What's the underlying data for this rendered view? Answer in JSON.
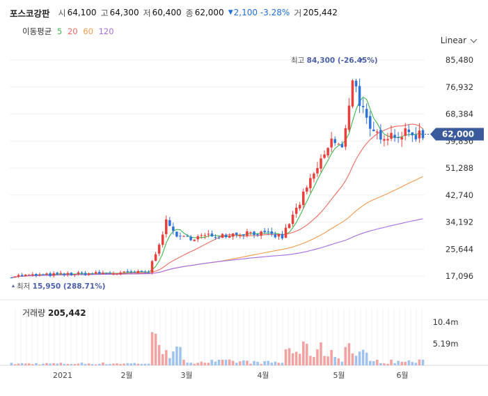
{
  "header": {
    "name": "포스코강판",
    "open_label": "시",
    "open": "64,100",
    "high_label": "고",
    "high": "64,300",
    "low_label": "저",
    "low": "60,400",
    "close_label": "종",
    "close": "62,000",
    "change": "2,100",
    "change_pct": "-3.28%",
    "volume_label": "거",
    "volume": "205,442"
  },
  "ma_legend": {
    "label": "이동평균",
    "periods": [
      "5",
      "20",
      "60",
      "120"
    ],
    "colors": [
      "#3cb84a",
      "#f06a5e",
      "#f2994a",
      "#a56de2"
    ]
  },
  "scale": "Linear",
  "price_axis": {
    "ticks": [
      "85,480",
      "76,932",
      "68,384",
      "59,836",
      "51,288",
      "42,740",
      "34,192",
      "25,644",
      "17,096"
    ],
    "current": "62,000",
    "current_color": "#3a5a9c"
  },
  "markers": {
    "high_label": "최고",
    "high_value": "84,300 (-26.45%)",
    "low_label": "최저",
    "low_value": "15,950 (288.71%)"
  },
  "volume_panel": {
    "label": "거래량",
    "value": "205,442",
    "ticks": [
      "10.4m",
      "5.19m"
    ]
  },
  "x_axis": {
    "ticks": [
      "2021",
      "2월",
      "3월",
      "4월",
      "5월",
      "6월"
    ]
  },
  "colors": {
    "up": "#e8413d",
    "down": "#2f73d9",
    "up_vol": "#f2a3a1",
    "down_vol": "#9fc3ee"
  },
  "chart_data": {
    "type": "candlestick",
    "ylim": [
      17096,
      85480
    ],
    "volume_ylim": [
      0,
      10400000
    ],
    "segments": [
      {
        "days": 20,
        "from": 17100,
        "to": 17800,
        "vol": 400000
      },
      {
        "days": 20,
        "from": 17800,
        "to": 18300,
        "vol": 450000
      },
      {
        "days": 5,
        "from": 18300,
        "to": 34000,
        "vol": 5500000
      },
      {
        "days": 4,
        "from": 34000,
        "to": 29000,
        "vol": 3000000
      },
      {
        "days": 20,
        "from": 29000,
        "to": 31000,
        "vol": 900000
      },
      {
        "days": 9,
        "from": 31000,
        "to": 29500,
        "vol": 700000
      },
      {
        "days": 14,
        "from": 29500,
        "to": 60000,
        "vol": 3600000
      },
      {
        "days": 3,
        "from": 60000,
        "to": 57000,
        "vol": 2000000
      },
      {
        "days": 3,
        "from": 57000,
        "to": 80000,
        "vol": 4200000
      },
      {
        "days": 5,
        "from": 80000,
        "to": 62000,
        "vol": 2500000
      },
      {
        "days": 15,
        "from": 62000,
        "to": 62000,
        "vol": 900000
      }
    ],
    "ma5_end": 64000,
    "ma20_end": 67000,
    "ma60_end": 47800,
    "ma120_end": 34100,
    "high": 84300,
    "low": 15950
  }
}
